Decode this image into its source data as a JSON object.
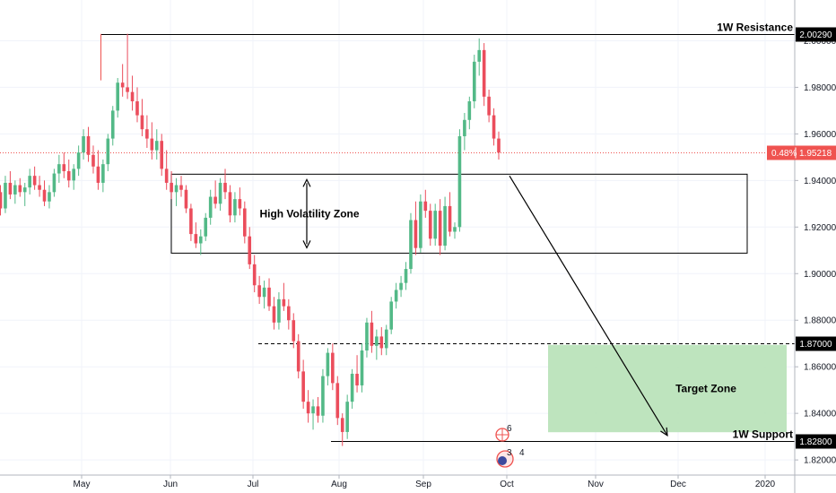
{
  "chart_data": {
    "type": "candlestick",
    "x_ticks": [
      "May",
      "Jun",
      "Jul",
      "Aug",
      "Sep",
      "Oct",
      "Nov",
      "Dec",
      "2020"
    ],
    "y_ticks": [
      "1.82000",
      "1.84000",
      "1.86000",
      "1.88000",
      "1.90000",
      "1.92000",
      "1.94000",
      "1.96000",
      "1.98000",
      "2.00000"
    ],
    "ylim": [
      1.8135,
      2.0175
    ],
    "grid": true,
    "colors": {
      "up": "#26a69a",
      "down": "#ef5350",
      "up_bar": "#53b987",
      "down_bar": "#eb4d5c",
      "target_fill": "#b7e1b7",
      "price_line": "#ef5350"
    },
    "current_price": {
      "change": "0.48%",
      "value": "1.95218",
      "price": 1.95218
    },
    "levels": [
      {
        "label": "1W Resistance",
        "tag": "2.00290",
        "price": 2.0029,
        "style": "solid"
      },
      {
        "label": "",
        "tag": "1.87000",
        "price": 1.87,
        "style": "dashed"
      },
      {
        "label": "1W Support",
        "tag": "1.82800",
        "price": 1.828,
        "style": "solid"
      }
    ],
    "zones": [
      {
        "label": "High Volatility Zone",
        "top": 1.9427,
        "bottom": 1.9088
      },
      {
        "label": "Target Zone",
        "top": 1.8694,
        "bottom": 1.8319
      }
    ],
    "projection": {
      "from_price": 1.942,
      "to_price": 1.8305
    },
    "event_badges": [
      "6",
      "3",
      "4"
    ],
    "candles": [
      [
        1.935,
        1.938,
        1.925,
        1.928
      ],
      [
        1.928,
        1.942,
        1.926,
        1.939
      ],
      [
        1.939,
        1.944,
        1.932,
        1.934
      ],
      [
        1.934,
        1.94,
        1.93,
        1.938
      ],
      [
        1.938,
        1.941,
        1.933,
        1.935
      ],
      [
        1.935,
        1.939,
        1.929,
        1.937
      ],
      [
        1.937,
        1.945,
        1.934,
        1.942
      ],
      [
        1.942,
        1.946,
        1.936,
        1.938
      ],
      [
        1.938,
        1.942,
        1.933,
        1.936
      ],
      [
        1.936,
        1.94,
        1.929,
        1.931
      ],
      [
        1.931,
        1.938,
        1.928,
        1.935
      ],
      [
        1.935,
        1.945,
        1.933,
        1.943
      ],
      [
        1.943,
        1.951,
        1.939,
        1.947
      ],
      [
        1.947,
        1.952,
        1.941,
        1.944
      ],
      [
        1.944,
        1.949,
        1.937,
        1.94
      ],
      [
        1.94,
        1.947,
        1.936,
        1.945
      ],
      [
        1.945,
        1.955,
        1.942,
        1.952
      ],
      [
        1.952,
        1.962,
        1.949,
        1.959
      ],
      [
        1.959,
        1.963,
        1.948,
        1.951
      ],
      [
        1.951,
        1.955,
        1.943,
        1.946
      ],
      [
        1.946,
        1.953,
        1.936,
        1.939
      ],
      [
        1.939,
        1.949,
        1.935,
        1.947
      ],
      [
        1.947,
        1.96,
        1.944,
        1.958
      ],
      [
        1.958,
        1.972,
        1.955,
        1.97
      ],
      [
        1.97,
        1.984,
        1.967,
        1.982
      ],
      [
        1.982,
        1.99,
        1.976,
        1.98
      ],
      [
        1.98,
        2.003,
        1.975,
        1.978
      ],
      [
        1.978,
        1.985,
        1.97,
        1.974
      ],
      [
        1.974,
        1.98,
        1.965,
        1.968
      ],
      [
        1.968,
        1.975,
        1.959,
        1.962
      ],
      [
        1.962,
        1.968,
        1.954,
        1.958
      ],
      [
        1.958,
        1.965,
        1.949,
        1.953
      ],
      [
        1.953,
        1.962,
        1.949,
        1.957
      ],
      [
        1.957,
        1.96,
        1.942,
        1.945
      ],
      [
        1.945,
        1.953,
        1.936,
        1.939
      ],
      [
        1.939,
        1.944,
        1.932,
        1.935
      ],
      [
        1.935,
        1.941,
        1.929,
        1.938
      ],
      [
        1.938,
        1.942,
        1.933,
        1.936
      ],
      [
        1.936,
        1.938,
        1.926,
        1.928
      ],
      [
        1.928,
        1.93,
        1.914,
        1.917
      ],
      [
        1.917,
        1.922,
        1.911,
        1.913
      ],
      [
        1.913,
        1.919,
        1.908,
        1.916
      ],
      [
        1.916,
        1.926,
        1.914,
        1.924
      ],
      [
        1.924,
        1.936,
        1.921,
        1.933
      ],
      [
        1.933,
        1.94,
        1.928,
        1.93
      ],
      [
        1.93,
        1.941,
        1.927,
        1.939
      ],
      [
        1.939,
        1.945,
        1.932,
        1.935
      ],
      [
        1.935,
        1.938,
        1.922,
        1.925
      ],
      [
        1.925,
        1.935,
        1.922,
        1.932
      ],
      [
        1.932,
        1.937,
        1.925,
        1.928
      ],
      [
        1.928,
        1.931,
        1.913,
        1.916
      ],
      [
        1.916,
        1.92,
        1.902,
        1.904
      ],
      [
        1.904,
        1.908,
        1.892,
        1.895
      ],
      [
        1.895,
        1.899,
        1.887,
        1.89
      ],
      [
        1.89,
        1.897,
        1.885,
        1.894
      ],
      [
        1.894,
        1.898,
        1.884,
        1.886
      ],
      [
        1.886,
        1.89,
        1.876,
        1.879
      ],
      [
        1.879,
        1.892,
        1.876,
        1.889
      ],
      [
        1.889,
        1.896,
        1.884,
        1.886
      ],
      [
        1.886,
        1.889,
        1.876,
        1.88
      ],
      [
        1.88,
        1.883,
        1.868,
        1.871
      ],
      [
        1.871,
        1.874,
        1.855,
        1.858
      ],
      [
        1.858,
        1.863,
        1.842,
        1.845
      ],
      [
        1.845,
        1.85,
        1.836,
        1.84
      ],
      [
        1.84,
        1.846,
        1.833,
        1.843
      ],
      [
        1.843,
        1.847,
        1.836,
        1.839
      ],
      [
        1.839,
        1.859,
        1.836,
        1.856
      ],
      [
        1.856,
        1.868,
        1.852,
        1.866
      ],
      [
        1.866,
        1.87,
        1.85,
        1.853
      ],
      [
        1.853,
        1.856,
        1.835,
        1.838
      ],
      [
        1.838,
        1.84,
        1.826,
        1.832
      ],
      [
        1.832,
        1.848,
        1.829,
        1.845
      ],
      [
        1.845,
        1.859,
        1.842,
        1.857
      ],
      [
        1.857,
        1.865,
        1.849,
        1.852
      ],
      [
        1.852,
        1.87,
        1.849,
        1.867
      ],
      [
        1.867,
        1.881,
        1.864,
        1.879
      ],
      [
        1.879,
        1.884,
        1.866,
        1.869
      ],
      [
        1.869,
        1.876,
        1.863,
        1.873
      ],
      [
        1.873,
        1.877,
        1.865,
        1.868
      ],
      [
        1.868,
        1.878,
        1.865,
        1.876
      ],
      [
        1.876,
        1.89,
        1.874,
        1.888
      ],
      [
        1.888,
        1.896,
        1.885,
        1.893
      ],
      [
        1.893,
        1.899,
        1.89,
        1.896
      ],
      [
        1.896,
        1.905,
        1.893,
        1.902
      ],
      [
        1.902,
        1.926,
        1.9,
        1.923
      ],
      [
        1.923,
        1.931,
        1.908,
        1.911
      ],
      [
        1.911,
        1.934,
        1.909,
        1.931
      ],
      [
        1.931,
        1.936,
        1.924,
        1.927
      ],
      [
        1.927,
        1.93,
        1.912,
        1.915
      ],
      [
        1.915,
        1.93,
        1.912,
        1.927
      ],
      [
        1.927,
        1.932,
        1.908,
        1.912
      ],
      [
        1.912,
        1.933,
        1.91,
        1.929
      ],
      [
        1.929,
        1.935,
        1.916,
        1.918
      ],
      [
        1.918,
        1.922,
        1.915,
        1.92
      ],
      [
        1.92,
        1.962,
        1.918,
        1.959
      ],
      [
        1.959,
        1.969,
        1.953,
        1.966
      ],
      [
        1.966,
        1.976,
        1.962,
        1.974
      ],
      [
        1.974,
        1.994,
        1.971,
        1.991
      ],
      [
        1.991,
        2.001,
        1.985,
        1.996
      ],
      [
        1.996,
        1.999,
        1.972,
        1.976
      ],
      [
        1.976,
        1.979,
        1.965,
        1.968
      ],
      [
        1.968,
        1.971,
        1.955,
        1.958
      ],
      [
        1.958,
        1.961,
        1.949,
        1.952
      ]
    ]
  }
}
